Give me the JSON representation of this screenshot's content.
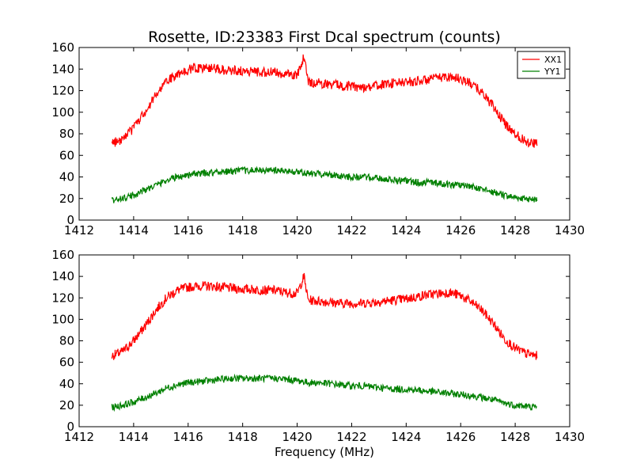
{
  "chart_data": [
    {
      "type": "line",
      "title": "Rosette, ID:23383 First Dcal spectrum (counts)",
      "xlabel": "",
      "ylabel": "",
      "xlim": [
        1412,
        1430
      ],
      "ylim": [
        0,
        160
      ],
      "xticks": [
        1412,
        1414,
        1416,
        1418,
        1420,
        1422,
        1424,
        1426,
        1428,
        1430
      ],
      "yticks": [
        0,
        20,
        40,
        60,
        80,
        100,
        120,
        140,
        160
      ],
      "grid": false,
      "legend": {
        "position": "top-right"
      },
      "x": [
        1413.2,
        1413.6,
        1414.0,
        1414.4,
        1414.8,
        1415.2,
        1415.6,
        1416.0,
        1416.4,
        1416.8,
        1417.2,
        1417.6,
        1418.0,
        1418.4,
        1418.8,
        1419.2,
        1419.6,
        1420.0,
        1420.25,
        1420.4,
        1420.8,
        1421.2,
        1421.6,
        1422.0,
        1422.4,
        1422.8,
        1423.2,
        1423.6,
        1424.0,
        1424.4,
        1424.8,
        1425.2,
        1425.6,
        1426.0,
        1426.4,
        1426.8,
        1427.2,
        1427.6,
        1428.0,
        1428.4,
        1428.8
      ],
      "series": [
        {
          "name": "XX1",
          "color": "#ff0000",
          "values": [
            71,
            75,
            85,
            100,
            115,
            128,
            135,
            140,
            141,
            141,
            140,
            139,
            138,
            138,
            137,
            137,
            135,
            134,
            152,
            128,
            127,
            126,
            125,
            124,
            123,
            124,
            126,
            127,
            128,
            129,
            130,
            132,
            133,
            131,
            126,
            118,
            105,
            90,
            80,
            73,
            71
          ]
        },
        {
          "name": "YY1",
          "color": "#008000",
          "values": [
            18,
            20,
            23,
            28,
            32,
            37,
            40,
            42,
            43,
            44,
            45,
            45,
            46,
            46,
            46,
            46,
            45,
            45,
            44,
            43,
            43,
            42,
            41,
            40,
            40,
            39,
            38,
            37,
            36,
            35,
            35,
            34,
            33,
            32,
            31,
            28,
            26,
            23,
            21,
            20,
            19
          ]
        }
      ]
    },
    {
      "type": "line",
      "title": "",
      "xlabel": "Frequency (MHz)",
      "ylabel": "",
      "xlim": [
        1412,
        1430
      ],
      "ylim": [
        0,
        160
      ],
      "xticks": [
        1412,
        1414,
        1416,
        1418,
        1420,
        1422,
        1424,
        1426,
        1428,
        1430
      ],
      "yticks": [
        0,
        20,
        40,
        60,
        80,
        100,
        120,
        140,
        160
      ],
      "grid": false,
      "x": [
        1413.2,
        1413.6,
        1414.0,
        1414.4,
        1414.8,
        1415.2,
        1415.6,
        1416.0,
        1416.4,
        1416.8,
        1417.2,
        1417.6,
        1418.0,
        1418.4,
        1418.8,
        1419.2,
        1419.6,
        1420.0,
        1420.25,
        1420.4,
        1420.8,
        1421.2,
        1421.6,
        1422.0,
        1422.4,
        1422.8,
        1423.2,
        1423.6,
        1424.0,
        1424.4,
        1424.8,
        1425.2,
        1425.6,
        1426.0,
        1426.4,
        1426.8,
        1427.2,
        1427.6,
        1428.0,
        1428.4,
        1428.8
      ],
      "series": [
        {
          "color": "#ff0000",
          "values": [
            66,
            70,
            80,
            93,
            108,
            120,
            127,
            130,
            131,
            131,
            130,
            129,
            128,
            128,
            127,
            127,
            125,
            124,
            140,
            118,
            117,
            116,
            115,
            115,
            115,
            116,
            117,
            118,
            119,
            121,
            123,
            124,
            125,
            122,
            116,
            108,
            96,
            82,
            73,
            68,
            66
          ]
        },
        {
          "color": "#008000",
          "values": [
            18,
            20,
            23,
            27,
            31,
            36,
            39,
            41,
            42,
            43,
            44,
            45,
            45,
            45,
            45,
            45,
            44,
            43,
            42,
            41,
            41,
            40,
            39,
            38,
            38,
            37,
            36,
            35,
            35,
            34,
            33,
            32,
            31,
            30,
            29,
            27,
            25,
            22,
            20,
            19,
            18
          ]
        }
      ]
    }
  ]
}
